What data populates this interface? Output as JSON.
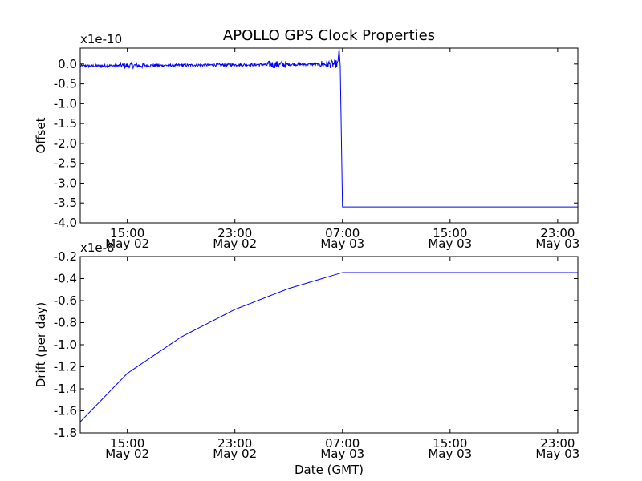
{
  "chart_data": [
    {
      "type": "line",
      "title": "APOLLO GPS Clock Properties",
      "ylabel": "Offset",
      "y_multiplier": "x1e-10",
      "ylim": [
        -4.0,
        0.4
      ],
      "yticks": [
        0.0,
        -0.5,
        -1.0,
        -1.5,
        -2.0,
        -2.5,
        -3.0,
        -3.5,
        -4.0
      ],
      "ytick_labels": [
        "0.0",
        "-0.5",
        "-1.0",
        "-1.5",
        "-2.0",
        "-2.5",
        "-3.0",
        "-3.5",
        "-4.0"
      ],
      "xlim": [
        "2014-05-02 11:30",
        "2014-05-04 00:30"
      ],
      "xticks": [
        "2014-05-02 15:00",
        "2014-05-02 23:00",
        "2014-05-03 07:00",
        "2014-05-03 15:00",
        "2014-05-03 23:00"
      ],
      "xtick_time": [
        "15:00",
        "23:00",
        "07:00",
        "15:00",
        "23:00"
      ],
      "xtick_date": [
        "May 02",
        "May 02",
        "May 03",
        "May 03",
        "May 03"
      ],
      "line_color": "#0000ff",
      "series": [
        {
          "x": [
            "2014-05-02 11:30",
            "2014-05-03 06:40",
            "2014-05-03 06:45",
            "2014-05-03 06:50",
            "2014-05-03 07:00",
            "2014-05-04 00:30"
          ],
          "values": [
            -0.05,
            0.0,
            0.4,
            -0.05,
            -3.6,
            -3.6
          ],
          "noise_amplitude": 0.1
        }
      ]
    },
    {
      "type": "line",
      "ylabel": "Drift (per day)",
      "xlabel": "Date (GMT)",
      "y_multiplier": "x1e-8",
      "ylim": [
        -1.8,
        -0.2
      ],
      "yticks": [
        -0.2,
        -0.4,
        -0.6,
        -0.8,
        -1.0,
        -1.2,
        -1.4,
        -1.6,
        -1.8
      ],
      "ytick_labels": [
        "-0.2",
        "-0.4",
        "-0.6",
        "-0.8",
        "-1.0",
        "-1.2",
        "-1.4",
        "-1.6",
        "-1.8"
      ],
      "xlim": [
        "2014-05-02 11:30",
        "2014-05-04 00:30"
      ],
      "xticks": [
        "2014-05-02 15:00",
        "2014-05-02 23:00",
        "2014-05-03 07:00",
        "2014-05-03 15:00",
        "2014-05-03 23:00"
      ],
      "xtick_time": [
        "15:00",
        "23:00",
        "07:00",
        "15:00",
        "23:00"
      ],
      "xtick_date": [
        "May 02",
        "May 02",
        "May 03",
        "May 03",
        "May 03"
      ],
      "line_color": "#0000ff",
      "series": [
        {
          "x": [
            "2014-05-02 11:30",
            "2014-05-02 15:00",
            "2014-05-02 19:00",
            "2014-05-02 23:00",
            "2014-05-03 03:00",
            "2014-05-03 07:00",
            "2014-05-04 00:30"
          ],
          "values": [
            -1.7,
            -1.26,
            -0.93,
            -0.68,
            -0.49,
            -0.345,
            -0.345
          ]
        }
      ]
    }
  ]
}
